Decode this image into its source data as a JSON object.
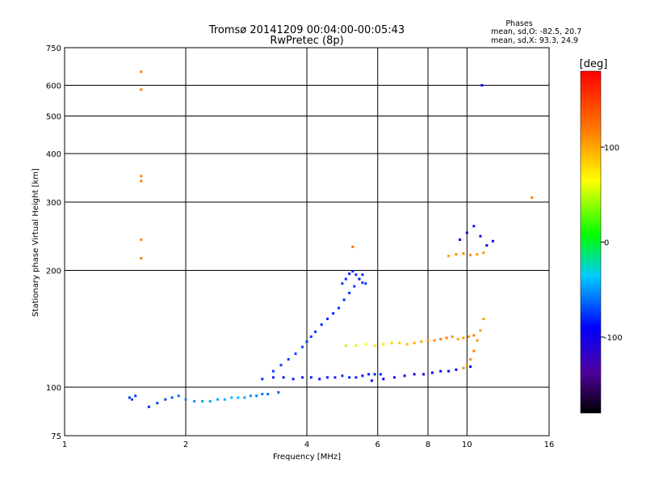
{
  "chart_data": {
    "type": "scatter",
    "title": "Tromsø 20141209 00:04:00-00:05:43",
    "subtitle": "RwPretec (8p)",
    "stats": {
      "heading": "Phases",
      "line1": "mean, sd,O:  -82.5, 20.7",
      "line2": "mean, sd,X:  93.3, 24.9"
    },
    "xlabel": "Frequency [MHz]",
    "ylabel": "Stationary phase Virtual Height [km]",
    "xscale": "log",
    "yscale": "log",
    "xlim": [
      1,
      16
    ],
    "ylim": [
      75,
      750
    ],
    "xticks": [
      1,
      2,
      4,
      6,
      8,
      10,
      16
    ],
    "xtick_labels": [
      "1",
      "2",
      "4",
      "6",
      "8",
      "10",
      "16"
    ],
    "yticks": [
      75,
      100,
      200,
      300,
      400,
      500,
      600,
      750
    ],
    "ytick_labels": [
      "75",
      "100",
      "200",
      "300",
      "400",
      "500",
      "600",
      "750"
    ],
    "grid": true,
    "colorbar": {
      "label": "[deg]",
      "range": [
        -180,
        180
      ],
      "ticks": [
        100,
        0,
        -100
      ],
      "tick_labels": [
        "100",
        "0",
        "-100"
      ]
    },
    "series": [
      {
        "x": [
          1.45,
          1.47,
          1.5,
          1.62,
          1.7,
          1.78,
          1.85,
          1.92,
          2.0,
          2.1,
          2.2,
          2.3,
          2.4,
          2.5,
          2.6,
          2.7,
          2.8,
          2.9,
          3.0,
          3.1,
          3.2,
          3.4
        ],
        "y": [
          94,
          93,
          95,
          89,
          91,
          93,
          94,
          95,
          93,
          92,
          92,
          92,
          93,
          93,
          94,
          94,
          94,
          95,
          95,
          96,
          96,
          97
        ],
        "phase": [
          -85,
          -85,
          -85,
          -90,
          -85,
          -80,
          -75,
          -70,
          -65,
          -60,
          -55,
          -55,
          -55,
          -52,
          -50,
          -50,
          -55,
          -60,
          -65,
          -70,
          -72,
          -75
        ]
      },
      {
        "x": [
          3.1,
          3.3,
          3.5,
          3.7,
          3.9,
          4.1,
          4.3,
          4.5,
          4.7,
          4.9,
          5.1,
          5.3,
          5.5,
          5.7,
          5.9,
          6.1
        ],
        "y": [
          105,
          106,
          106,
          105,
          106,
          106,
          105,
          106,
          106,
          107,
          106,
          106,
          107,
          108,
          108,
          108
        ],
        "phase": [
          -90,
          -92,
          -95,
          -95,
          -93,
          -92,
          -95,
          -95,
          -90,
          -88,
          -90,
          -92,
          -95,
          -95,
          -92,
          -90
        ]
      },
      {
        "x": [
          3.3,
          3.45,
          3.6,
          3.75,
          3.9,
          4.0,
          4.1,
          4.2,
          4.35,
          4.5,
          4.65,
          4.8,
          4.95,
          5.1,
          5.25,
          5.4,
          5.5
        ],
        "y": [
          110,
          114,
          118,
          122,
          127,
          131,
          135,
          139,
          145,
          150,
          155,
          160,
          168,
          175,
          182,
          190,
          195
        ],
        "phase": [
          -85,
          -85,
          -83,
          -82,
          -80,
          -82,
          -85,
          -88,
          -90,
          -90,
          -92,
          -90,
          -88,
          -86,
          -85,
          -87,
          -90
        ]
      },
      {
        "x": [
          4.9,
          5.0,
          5.1,
          5.2,
          5.3,
          5.4,
          5.5,
          5.6
        ],
        "y": [
          185,
          190,
          196,
          199,
          195,
          190,
          186,
          185
        ],
        "phase": [
          -85,
          -88,
          -90,
          -92,
          -90,
          -88,
          -86,
          -85
        ]
      },
      {
        "x": [
          5.0,
          5.3,
          5.6,
          5.9,
          6.2,
          6.5,
          6.8,
          7.1,
          7.4,
          7.7,
          8.0,
          8.3,
          8.6,
          8.9,
          9.2,
          9.5,
          9.8,
          10.1,
          10.4
        ],
        "y": [
          128,
          128,
          129,
          128,
          129,
          130,
          130,
          129,
          130,
          131,
          132,
          132,
          133,
          134,
          135,
          133,
          134,
          135,
          136
        ],
        "phase": [
          40,
          50,
          60,
          70,
          75,
          80,
          85,
          90,
          95,
          100,
          105,
          110,
          115,
          120,
          110,
          100,
          105,
          110,
          115
        ]
      },
      {
        "x": [
          5.8,
          6.2,
          6.6,
          7.0,
          7.4,
          7.8,
          8.2,
          8.6,
          9.0,
          9.4,
          9.8,
          10.2
        ],
        "y": [
          104,
          105,
          106,
          107,
          108,
          108,
          109,
          110,
          110,
          111,
          112,
          113
        ],
        "phase": [
          -105,
          -105,
          -108,
          -108,
          -110,
          -110,
          -108,
          -105,
          -105,
          -102,
          -100,
          -100
        ]
      },
      {
        "x": [
          9.8,
          10.0,
          10.2,
          10.4,
          10.6,
          10.8,
          11.0
        ],
        "y": [
          112,
          114,
          118,
          124,
          132,
          140,
          150
        ],
        "phase": [
          100,
          105,
          110,
          115,
          110,
          105,
          100
        ]
      },
      {
        "x": [
          9.0,
          9.4,
          9.8,
          10.2,
          10.6,
          11.0
        ],
        "y": [
          218,
          220,
          221,
          219,
          220,
          222
        ],
        "phase": [
          100,
          110,
          115,
          110,
          105,
          110
        ]
      },
      {
        "x": [
          9.6,
          10.0,
          10.4,
          10.8,
          11.2,
          11.6
        ],
        "y": [
          240,
          250,
          260,
          245,
          232,
          238
        ],
        "phase": [
          -105,
          -100,
          -95,
          -110,
          -105,
          -100
        ]
      },
      {
        "x": [
          1.55,
          1.55,
          1.55,
          1.55,
          1.55,
          1.55,
          10.9,
          14.5,
          5.2
        ],
        "y": [
          650,
          585,
          350,
          340,
          240,
          215,
          600,
          308,
          230
        ],
        "phase": [
          115,
          115,
          115,
          115,
          115,
          115,
          -100,
          115,
          120
        ]
      }
    ]
  }
}
